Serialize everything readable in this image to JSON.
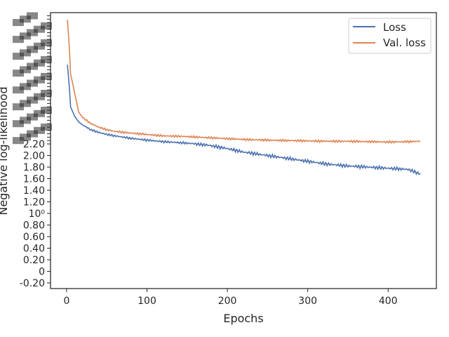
{
  "chart_data": {
    "type": "line",
    "xlabel": "Epochs",
    "ylabel": "Negative log-likelihood",
    "xlim": [
      -20,
      460
    ],
    "x_ticks": [
      0,
      100,
      200,
      300,
      400
    ],
    "x_tick_labels": [
      "0",
      "100",
      "200",
      "300",
      "400"
    ],
    "y_scale": "symlog (linear from -0.2 to 2.2, log-compressed above)",
    "y_tick_labels_linear": [
      "-0.20",
      "0",
      "0.20",
      "0.40",
      "0.60",
      "0.80",
      "10⁰",
      "1.20",
      "1.40",
      "1.60",
      "1.80",
      "2.00",
      "2.20"
    ],
    "y_ticks_linear": [
      -0.2,
      0,
      0.2,
      0.4,
      0.6,
      0.8,
      1.0,
      1.2,
      1.4,
      1.6,
      1.8,
      2.0,
      2.2
    ],
    "y_tick_note": "dense overlapping tick labels above 2.20 are illegible",
    "legend": {
      "position": "top-right",
      "entries": [
        "Loss",
        "Val. loss"
      ]
    },
    "grid": false,
    "series": [
      {
        "name": "Loss",
        "color": "#4c72b0",
        "x": [
          1,
          5,
          10,
          15,
          20,
          30,
          40,
          50,
          60,
          80,
          100,
          120,
          150,
          175,
          200,
          220,
          250,
          275,
          300,
          325,
          350,
          375,
          400,
          425,
          440
        ],
        "y": [
          5.6,
          3.4,
          3.05,
          2.85,
          2.75,
          2.6,
          2.52,
          2.46,
          2.42,
          2.35,
          2.3,
          2.26,
          2.22,
          2.18,
          2.12,
          2.06,
          2.0,
          1.95,
          1.9,
          1.85,
          1.82,
          1.8,
          1.78,
          1.76,
          1.68
        ]
      },
      {
        "name": "Val. loss",
        "color": "#dd8452",
        "x": [
          1,
          5,
          10,
          15,
          20,
          30,
          40,
          50,
          60,
          80,
          100,
          120,
          150,
          175,
          200,
          220,
          250,
          275,
          300,
          325,
          350,
          375,
          400,
          425,
          440
        ],
        "y": [
          9.5,
          5.0,
          4.0,
          3.2,
          3.0,
          2.8,
          2.68,
          2.6,
          2.55,
          2.5,
          2.46,
          2.42,
          2.4,
          2.37,
          2.34,
          2.32,
          2.3,
          2.29,
          2.28,
          2.27,
          2.27,
          2.26,
          2.25,
          2.26,
          2.27
        ]
      }
    ]
  }
}
